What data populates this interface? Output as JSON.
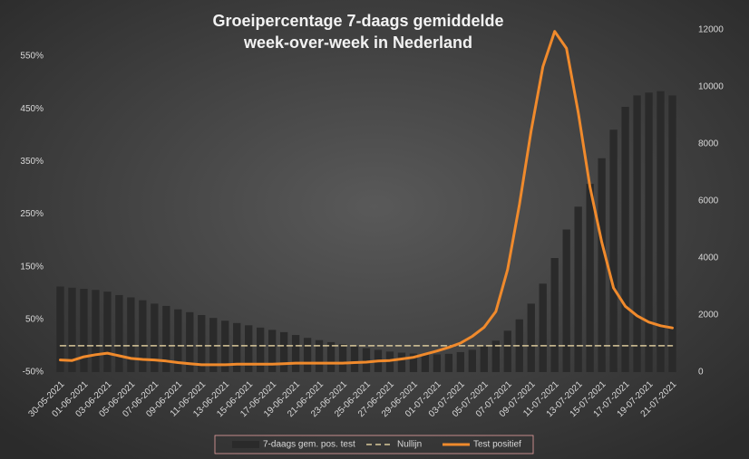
{
  "chart_data": {
    "type": "combo",
    "title": "Groeipercentage 7-daags gemiddelde",
    "subtitle": "week-over-week in Nederland",
    "categories": [
      "30-05-2021",
      null,
      "01-06-2021",
      null,
      "03-06-2021",
      null,
      "05-06-2021",
      null,
      "07-06-2021",
      null,
      "09-06-2021",
      null,
      "11-06-2021",
      null,
      "13-06-2021",
      null,
      "15-06-2021",
      null,
      "17-06-2021",
      null,
      "19-06-2021",
      null,
      "21-06-2021",
      null,
      "23-06-2021",
      null,
      "25-06-2021",
      null,
      "27-06-2021",
      null,
      "29-06-2021",
      null,
      "01-07-2021",
      null,
      "03-07-2021",
      null,
      "05-07-2021",
      null,
      "07-07-2021",
      null,
      "09-07-2021",
      null,
      "11-07-2021",
      null,
      "13-07-2021",
      null,
      "15-07-2021",
      null,
      "17-07-2021",
      null,
      "19-07-2021",
      null,
      "21-07-2021"
    ],
    "ylim": [
      -50,
      600
    ],
    "yticks": [
      {
        "value": -50,
        "label": "-50%"
      },
      {
        "value": 50,
        "label": "50%"
      },
      {
        "value": 150,
        "label": "150%"
      },
      {
        "value": 250,
        "label": "250%"
      },
      {
        "value": 350,
        "label": "350%"
      },
      {
        "value": 450,
        "label": "450%"
      },
      {
        "value": 550,
        "label": "550%"
      }
    ],
    "y2lim": [
      0,
      12000
    ],
    "y2ticks": [
      0,
      2000,
      4000,
      6000,
      8000,
      10000,
      12000
    ],
    "legend": "bottom",
    "series": [
      {
        "name": "7-daags gem. pos. test",
        "type": "bar",
        "axis": "y2",
        "color": "#2a2a2a",
        "values": [
          3000,
          2960,
          2920,
          2880,
          2820,
          2700,
          2620,
          2520,
          2400,
          2320,
          2200,
          2100,
          2000,
          1900,
          1800,
          1720,
          1640,
          1560,
          1480,
          1400,
          1300,
          1200,
          1120,
          1050,
          980,
          900,
          840,
          780,
          720,
          680,
          650,
          630,
          620,
          640,
          700,
          780,
          900,
          1100,
          1450,
          1850,
          2400,
          3100,
          4000,
          5000,
          5800,
          6600,
          7500,
          8500,
          9300,
          9700,
          9800,
          9850,
          9700
        ]
      },
      {
        "name": "Nullijn",
        "type": "line",
        "dashed": true,
        "color": "#d9c89a",
        "values": [
          0,
          0,
          0,
          0,
          0,
          0,
          0,
          0,
          0,
          0,
          0,
          0,
          0,
          0,
          0,
          0,
          0,
          0,
          0,
          0,
          0,
          0,
          0,
          0,
          0,
          0,
          0,
          0,
          0,
          0,
          0,
          0,
          0,
          0,
          0,
          0,
          0,
          0,
          0,
          0,
          0,
          0,
          0,
          0,
          0,
          0,
          0,
          0,
          0,
          0,
          0,
          0,
          0
        ]
      },
      {
        "name": "Test positief",
        "type": "line",
        "color": "#f08a2c",
        "values": [
          -27,
          -28,
          -21,
          -17,
          -14,
          -19,
          -24,
          -26,
          -27,
          -29,
          -32,
          -34,
          -36,
          -36,
          -36,
          -35,
          -35,
          -35,
          -35,
          -34,
          -33,
          -33,
          -33,
          -33,
          -33,
          -32,
          -31,
          -29,
          -28,
          -25,
          -22,
          -16,
          -10,
          -3,
          5,
          18,
          35,
          65,
          145,
          268,
          408,
          530,
          597,
          565,
          443,
          302,
          197,
          110,
          75,
          57,
          45,
          38,
          34
        ]
      }
    ]
  }
}
